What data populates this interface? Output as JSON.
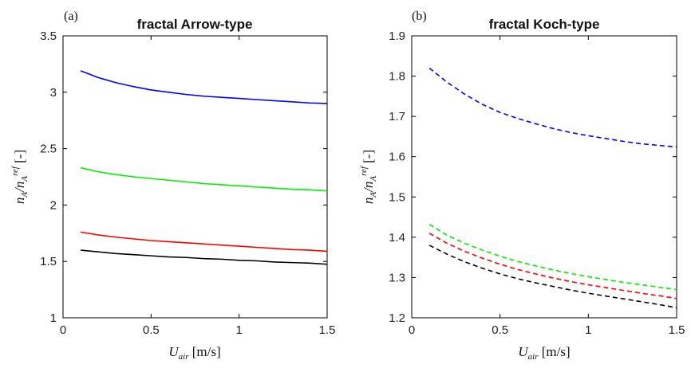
{
  "chart_data": [
    {
      "type": "line",
      "panel_label": "(a)",
      "title": "fractal Arrow-type",
      "xlabel": "U_air [m/s]",
      "ylabel": "n_A/n_A^ref [-]",
      "xlim": [
        0,
        1.5
      ],
      "ylim": [
        1,
        3.5
      ],
      "xticks": [
        "0",
        "0.5",
        "1",
        "1.5"
      ],
      "yticks": [
        "1",
        "1.5",
        "2",
        "2.5",
        "3",
        "3.5"
      ],
      "grid": false,
      "line_style": "solid",
      "x": [
        0.1,
        0.2,
        0.3,
        0.4,
        0.5,
        0.6,
        0.7,
        0.8,
        0.9,
        1.0,
        1.1,
        1.2,
        1.3,
        1.4,
        1.5
      ],
      "series": [
        {
          "color": "#0000ff",
          "values": [
            3.19,
            3.13,
            3.085,
            3.05,
            3.02,
            3.0,
            2.98,
            2.965,
            2.955,
            2.945,
            2.935,
            2.925,
            2.915,
            2.905,
            2.9
          ]
        },
        {
          "color": "#00ee00",
          "values": [
            2.33,
            2.295,
            2.27,
            2.25,
            2.235,
            2.22,
            2.205,
            2.19,
            2.18,
            2.17,
            2.16,
            2.15,
            2.14,
            2.135,
            2.125
          ]
        },
        {
          "color": "#ff0000",
          "values": [
            1.76,
            1.735,
            1.715,
            1.7,
            1.685,
            1.675,
            1.665,
            1.655,
            1.645,
            1.635,
            1.625,
            1.615,
            1.605,
            1.6,
            1.59
          ]
        },
        {
          "color": "#000000",
          "values": [
            1.6,
            1.585,
            1.57,
            1.56,
            1.55,
            1.54,
            1.535,
            1.525,
            1.52,
            1.51,
            1.505,
            1.495,
            1.49,
            1.485,
            1.475
          ]
        }
      ]
    },
    {
      "type": "line",
      "panel_label": "(b)",
      "title": "fractal Koch-type",
      "xlabel": "U_air [m/s]",
      "ylabel": "n_A/n_A^ref [-]",
      "xlim": [
        0,
        1.5
      ],
      "ylim": [
        1.2,
        1.9
      ],
      "xticks": [
        "0",
        "0.5",
        "1",
        "1.5"
      ],
      "yticks": [
        "1.2",
        "1.3",
        "1.4",
        "1.5",
        "1.6",
        "1.7",
        "1.8",
        "1.9"
      ],
      "grid": false,
      "line_style": "dashed",
      "x": [
        0.1,
        0.2,
        0.3,
        0.4,
        0.5,
        0.6,
        0.7,
        0.8,
        0.9,
        1.0,
        1.1,
        1.2,
        1.3,
        1.4,
        1.5
      ],
      "series": [
        {
          "color": "#0000ff",
          "values": [
            1.82,
            1.785,
            1.755,
            1.73,
            1.71,
            1.695,
            1.682,
            1.67,
            1.66,
            1.652,
            1.645,
            1.638,
            1.632,
            1.628,
            1.624
          ]
        },
        {
          "color": "#00ee00",
          "values": [
            1.432,
            1.405,
            1.385,
            1.368,
            1.353,
            1.34,
            1.329,
            1.319,
            1.31,
            1.302,
            1.295,
            1.288,
            1.282,
            1.276,
            1.27
          ]
        },
        {
          "color": "#ff0000",
          "values": [
            1.41,
            1.385,
            1.365,
            1.348,
            1.333,
            1.32,
            1.309,
            1.299,
            1.29,
            1.282,
            1.275,
            1.268,
            1.261,
            1.255,
            1.248
          ]
        },
        {
          "color": "#000000",
          "values": [
            1.38,
            1.358,
            1.339,
            1.323,
            1.309,
            1.297,
            1.287,
            1.278,
            1.269,
            1.261,
            1.254,
            1.247,
            1.24,
            1.233,
            1.225
          ]
        }
      ]
    }
  ]
}
